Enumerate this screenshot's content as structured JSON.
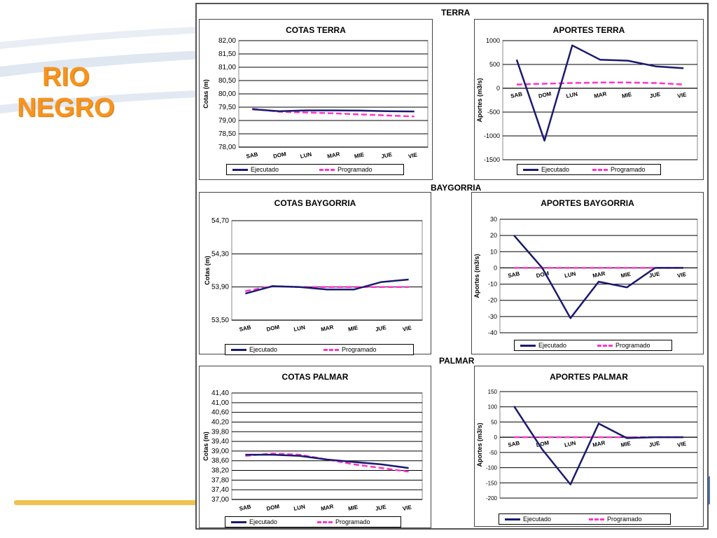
{
  "slide": {
    "title_line1": "RIO",
    "title_line2": "NEGRO",
    "title_color": "#f7941d"
  },
  "sections": {
    "terra": "TERRA",
    "baygorria": "BAYGORRIA",
    "palmar": "PALMAR"
  },
  "legend": {
    "executed": "Ejecutado",
    "programmed": "Programado",
    "executed_color": "#1a1a6e",
    "programmed_color": "#ff33cc"
  },
  "chart_data": [
    {
      "id": "cotas_terra",
      "type": "line",
      "title": "COTAS TERRA",
      "ylabel": "Cotas (m)",
      "categories": [
        "SAB",
        "DOM",
        "LUN",
        "MAR",
        "MIE",
        "JUE",
        "VIE"
      ],
      "ylim": [
        78.0,
        82.0
      ],
      "yticks": [
        78.0,
        78.5,
        79.0,
        79.5,
        80.0,
        80.5,
        81.0,
        81.5,
        82.0
      ],
      "ytick_labels": [
        "78,00",
        "78,50",
        "79,00",
        "79,50",
        "80,00",
        "80,50",
        "81,00",
        "81,50",
        "82,00"
      ],
      "grid": true,
      "legend_position": "bottom",
      "series": [
        {
          "name": "Ejecutado",
          "values": [
            79.42,
            79.35,
            79.38,
            79.38,
            79.37,
            79.35,
            79.34
          ]
        },
        {
          "name": "Programado",
          "values": [
            79.44,
            79.33,
            79.3,
            79.27,
            79.23,
            79.19,
            79.15
          ]
        }
      ]
    },
    {
      "id": "aportes_terra",
      "type": "line",
      "title": "APORTES TERRA",
      "ylabel": "Aportes (m3/s)",
      "categories": [
        "SAB",
        "DOM",
        "LUN",
        "MAR",
        "MIE",
        "JUE",
        "VIE"
      ],
      "ylim": [
        -1500,
        1000
      ],
      "yticks": [
        -1500,
        -1000,
        -500,
        0,
        500,
        1000
      ],
      "ytick_labels": [
        "-1500",
        "-1000",
        "-500",
        "0",
        "500",
        "1000"
      ],
      "grid": true,
      "legend_position": "bottom",
      "series": [
        {
          "name": "Ejecutado",
          "values": [
            600,
            -1100,
            900,
            600,
            580,
            460,
            420
          ]
        },
        {
          "name": "Programado",
          "values": [
            80,
            95,
            110,
            120,
            120,
            110,
            80
          ]
        }
      ]
    },
    {
      "id": "cotas_baygorria",
      "type": "line",
      "title": "COTAS BAYGORRIA",
      "ylabel": "Cotas (m)",
      "categories": [
        "SAB",
        "DOM",
        "LUN",
        "MAR",
        "MIE",
        "JUE",
        "VIE"
      ],
      "ylim": [
        53.5,
        54.7
      ],
      "yticks": [
        53.5,
        53.9,
        54.3,
        54.7
      ],
      "ytick_labels": [
        "53,50",
        "53,90",
        "54,30",
        "54,70"
      ],
      "grid": true,
      "legend_position": "bottom",
      "series": [
        {
          "name": "Ejecutado",
          "values": [
            53.82,
            53.91,
            53.9,
            53.87,
            53.87,
            53.96,
            53.99
          ]
        },
        {
          "name": "Programado",
          "values": [
            53.85,
            53.91,
            53.9,
            53.9,
            53.9,
            53.9,
            53.9
          ]
        }
      ]
    },
    {
      "id": "aportes_baygorria",
      "type": "line",
      "title": "APORTES BAYGORRIA",
      "ylabel": "Aportes (m3/s)",
      "categories": [
        "SAB",
        "DOM",
        "LUN",
        "MAR",
        "MIE",
        "JUE",
        "VIE"
      ],
      "ylim": [
        -40,
        30
      ],
      "yticks": [
        -40,
        -30,
        -20,
        -10,
        0,
        10,
        20,
        30
      ],
      "ytick_labels": [
        "-40",
        "-30",
        "-20",
        "-10",
        "0",
        "10",
        "20",
        "30"
      ],
      "grid": true,
      "legend_position": "bottom",
      "series": [
        {
          "name": "Ejecutado",
          "values": [
            20,
            0,
            -31,
            -8.5,
            -12,
            0,
            0
          ]
        },
        {
          "name": "Programado",
          "values": [
            0,
            0,
            0,
            0,
            0,
            0,
            0
          ]
        }
      ]
    },
    {
      "id": "cotas_palmar",
      "type": "line",
      "title": "COTAS PALMAR",
      "ylabel": "Cotas (m)",
      "categories": [
        "SAB",
        "DOM",
        "LUN",
        "MAR",
        "MIE",
        "JUE",
        "VIE"
      ],
      "ylim": [
        37.0,
        41.4
      ],
      "yticks": [
        37.0,
        37.4,
        37.8,
        38.2,
        38.6,
        39.0,
        39.4,
        39.8,
        40.2,
        40.6,
        41.0,
        41.4
      ],
      "ytick_labels": [
        "37,00",
        "37,40",
        "37,80",
        "38,20",
        "38,60",
        "39,00",
        "39,40",
        "39,80",
        "40,20",
        "40,60",
        "41,00",
        "41,40"
      ],
      "grid": true,
      "legend_position": "bottom",
      "series": [
        {
          "name": "Ejecutado",
          "values": [
            38.85,
            38.85,
            38.8,
            38.65,
            38.55,
            38.45,
            38.3
          ]
        },
        {
          "name": "Programado",
          "values": [
            38.8,
            38.9,
            38.85,
            38.65,
            38.45,
            38.3,
            38.15
          ]
        }
      ]
    },
    {
      "id": "aportes_palmar",
      "type": "line",
      "title": "APORTES PALMAR",
      "ylabel": "Aportes (m3/s)",
      "categories": [
        "SAB",
        "DOM",
        "LUN",
        "MAR",
        "MIE",
        "JUE",
        "VIE"
      ],
      "ylim": [
        -200,
        150
      ],
      "yticks": [
        -200,
        -150,
        -100,
        -50,
        0,
        50,
        100,
        150
      ],
      "ytick_labels": [
        "-200",
        "-150",
        "-100",
        "-50",
        "0",
        "50",
        "100",
        "150"
      ],
      "grid": true,
      "legend_position": "bottom",
      "series": [
        {
          "name": "Ejecutado",
          "values": [
            102,
            -40,
            -155,
            45,
            -3,
            0,
            0
          ]
        },
        {
          "name": "Programado",
          "values": [
            0,
            0,
            0,
            0,
            0,
            0,
            0
          ]
        }
      ]
    }
  ]
}
